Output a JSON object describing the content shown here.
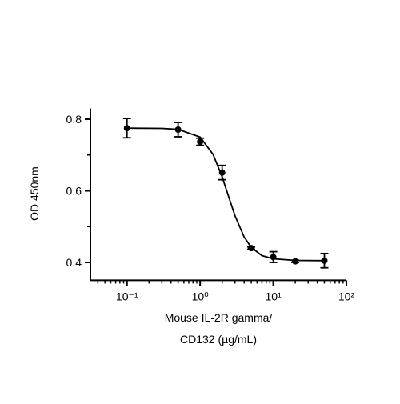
{
  "chart_data": {
    "type": "scatter",
    "ylabel": "OD 450nm",
    "xlabel": [
      "Mouse IL-2R gamma/",
      "CD132 (µg/mL)"
    ],
    "log_x": true,
    "xlim": [
      0.0316,
      100
    ],
    "ylim": [
      0.35,
      0.83
    ],
    "xticks": [
      {
        "value": 0.1,
        "label": "10⁻¹"
      },
      {
        "value": 1,
        "label": "10⁰"
      },
      {
        "value": 10,
        "label": "10¹"
      },
      {
        "value": 100,
        "label": "10²"
      }
    ],
    "xminor_ticks": [
      0.04,
      0.05,
      0.06,
      0.07,
      0.08,
      0.09,
      0.2,
      0.3,
      0.4,
      0.5,
      0.6,
      0.7,
      0.8,
      0.9,
      2,
      3,
      4,
      5,
      6,
      7,
      8,
      9,
      20,
      30,
      40,
      50,
      60,
      70,
      80,
      90
    ],
    "yticks": [
      0.4,
      0.6,
      0.8
    ],
    "yminor_ticks": [
      0.5,
      0.7
    ],
    "color": "#000000",
    "series": [
      {
        "x": [
          0.1,
          0.5,
          1,
          2,
          5,
          10,
          20,
          50
        ],
        "values": [
          0.775,
          0.771,
          0.737,
          0.651,
          0.44,
          0.415,
          0.403,
          0.405
        ],
        "errors": [
          0.027,
          0.02,
          0.01,
          0.02,
          0.003,
          0.015,
          0.003,
          0.02
        ]
      }
    ],
    "fit": {
      "x": [
        0.1,
        0.3,
        0.5,
        1,
        1.5,
        2,
        2.5,
        3,
        4,
        5,
        7,
        10,
        20,
        50
      ],
      "values": [
        0.775,
        0.7743,
        0.7717,
        0.75,
        0.702,
        0.639,
        0.579,
        0.53,
        0.471,
        0.442,
        0.419,
        0.41,
        0.4056,
        0.405
      ]
    }
  }
}
